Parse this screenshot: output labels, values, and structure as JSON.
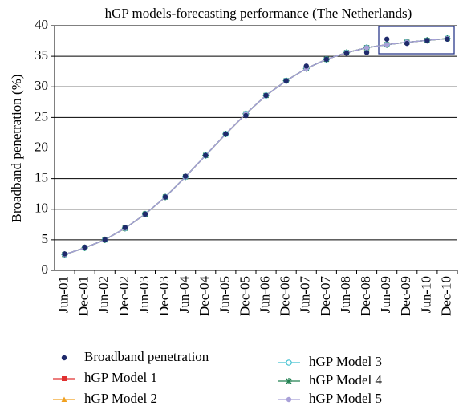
{
  "chart_data": {
    "type": "line",
    "title": "hGP models-forecasting performance (The Netherlands)",
    "y_label": "Broadband penetration (%)",
    "categories": [
      "Jun-01",
      "Dec-01",
      "Jun-02",
      "Dec-02",
      "Jun-03",
      "Dec-03",
      "Jun-04",
      "Dec-04",
      "Jun-05",
      "Dec-05",
      "Jun-06",
      "Dec-06",
      "Jun-07",
      "Dec-07",
      "Jun-08",
      "Dec-08",
      "Jun-09",
      "Dec-09",
      "Jun-10",
      "Dec-10"
    ],
    "series": [
      {
        "name": "Broadband penetration",
        "color": "#1f2a6b",
        "marker": "dot",
        "line": false,
        "values": [
          2.7,
          3.8,
          5.0,
          7.0,
          9.2,
          12.0,
          15.4,
          18.8,
          22.3,
          25.3,
          28.6,
          31.0,
          33.4,
          34.5,
          35.5,
          35.6,
          37.8,
          37.1,
          37.6,
          37.8
        ]
      },
      {
        "name": "hGP Model 1",
        "color": "#e03030",
        "marker": "square",
        "line": true,
        "values": [
          2.6,
          3.7,
          5.0,
          6.9,
          9.2,
          12.0,
          15.3,
          18.8,
          22.3,
          25.6,
          28.6,
          31.0,
          33.0,
          34.5,
          35.6,
          36.4,
          36.9,
          37.3,
          37.6,
          37.9
        ]
      },
      {
        "name": "hGP Model 2",
        "color": "#f0a020",
        "marker": "triangle",
        "line": true,
        "values": [
          2.6,
          3.7,
          5.0,
          6.9,
          9.2,
          12.0,
          15.3,
          18.8,
          22.3,
          25.6,
          28.6,
          31.0,
          33.0,
          34.5,
          35.6,
          36.4,
          36.9,
          37.3,
          37.6,
          37.9
        ]
      },
      {
        "name": "hGP Model 3",
        "color": "#40c0d0",
        "marker": "ring",
        "line": true,
        "values": [
          2.6,
          3.7,
          5.0,
          6.9,
          9.2,
          12.0,
          15.3,
          18.8,
          22.3,
          25.6,
          28.6,
          31.0,
          33.0,
          34.5,
          35.6,
          36.4,
          36.9,
          37.3,
          37.6,
          37.9
        ]
      },
      {
        "name": "hGP Model 4",
        "color": "#208050",
        "marker": "star",
        "line": true,
        "values": [
          2.6,
          3.7,
          5.0,
          6.9,
          9.2,
          12.0,
          15.3,
          18.8,
          22.3,
          25.6,
          28.6,
          31.0,
          33.0,
          34.5,
          35.6,
          36.4,
          36.9,
          37.3,
          37.6,
          37.9
        ]
      },
      {
        "name": "hGP Model 5",
        "color": "#a8a0d8",
        "marker": "dot",
        "line": true,
        "values": [
          2.6,
          3.7,
          5.0,
          6.9,
          9.2,
          12.0,
          15.3,
          18.8,
          22.3,
          25.6,
          28.6,
          31.0,
          33.0,
          34.5,
          35.6,
          36.4,
          36.9,
          37.3,
          37.6,
          37.9
        ]
      }
    ],
    "ylim": [
      0,
      40
    ],
    "yticks": [
      0,
      5,
      10,
      15,
      20,
      25,
      30,
      35,
      40
    ],
    "grid": true
  }
}
